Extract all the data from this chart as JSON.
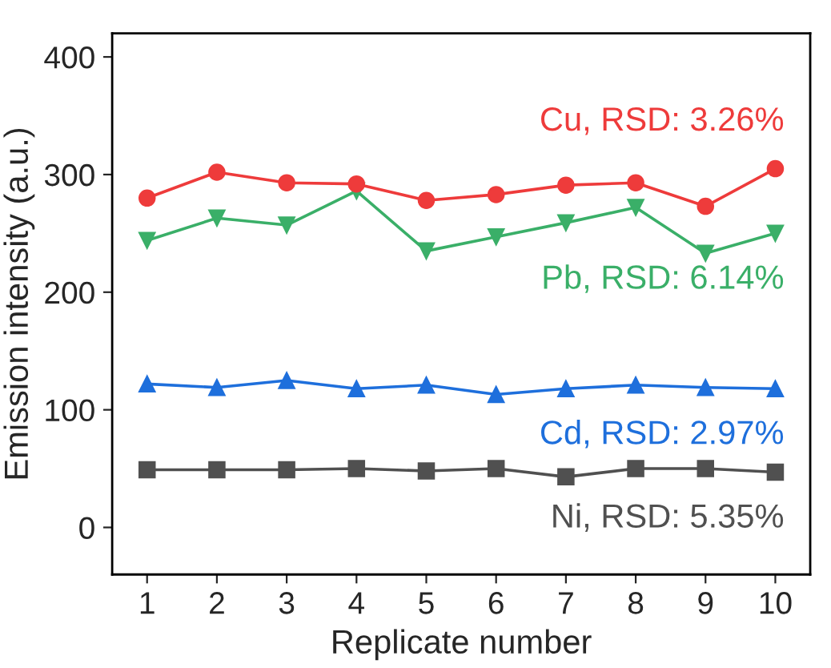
{
  "chart_data": {
    "type": "line",
    "xlabel": "Replicate number",
    "ylabel": "Emission intensity (a.u.)",
    "x": [
      1,
      2,
      3,
      4,
      5,
      6,
      7,
      8,
      9,
      10
    ],
    "series": [
      {
        "name": "Cu, RSD: 3.26%",
        "color": "#ee3b3b",
        "marker": "circle",
        "values": [
          280,
          302,
          293,
          292,
          278,
          283,
          291,
          293,
          273,
          305
        ]
      },
      {
        "name": "Pb, RSD: 6.14%",
        "color": "#3aaf68",
        "marker": "triangle-down",
        "values": [
          244,
          263,
          257,
          286,
          235,
          247,
          259,
          272,
          233,
          250
        ]
      },
      {
        "name": "Cd, RSD: 2.97%",
        "color": "#1e6fdc",
        "marker": "triangle",
        "values": [
          122,
          119,
          125,
          118,
          121,
          113,
          118,
          121,
          119,
          118
        ]
      },
      {
        "name": "Ni, RSD: 5.35%",
        "color": "#505050",
        "marker": "square",
        "values": [
          49,
          49,
          49,
          50,
          48,
          50,
          43,
          50,
          50,
          47
        ]
      }
    ],
    "xlim": [
      0.5,
      10.5
    ],
    "xticks": [
      1,
      2,
      3,
      4,
      5,
      6,
      7,
      8,
      9,
      10
    ],
    "ylim": [
      -40,
      420
    ],
    "yticks": [
      0,
      100,
      200,
      300,
      400
    ],
    "grid": false,
    "legend": false,
    "line_style": "solid"
  }
}
